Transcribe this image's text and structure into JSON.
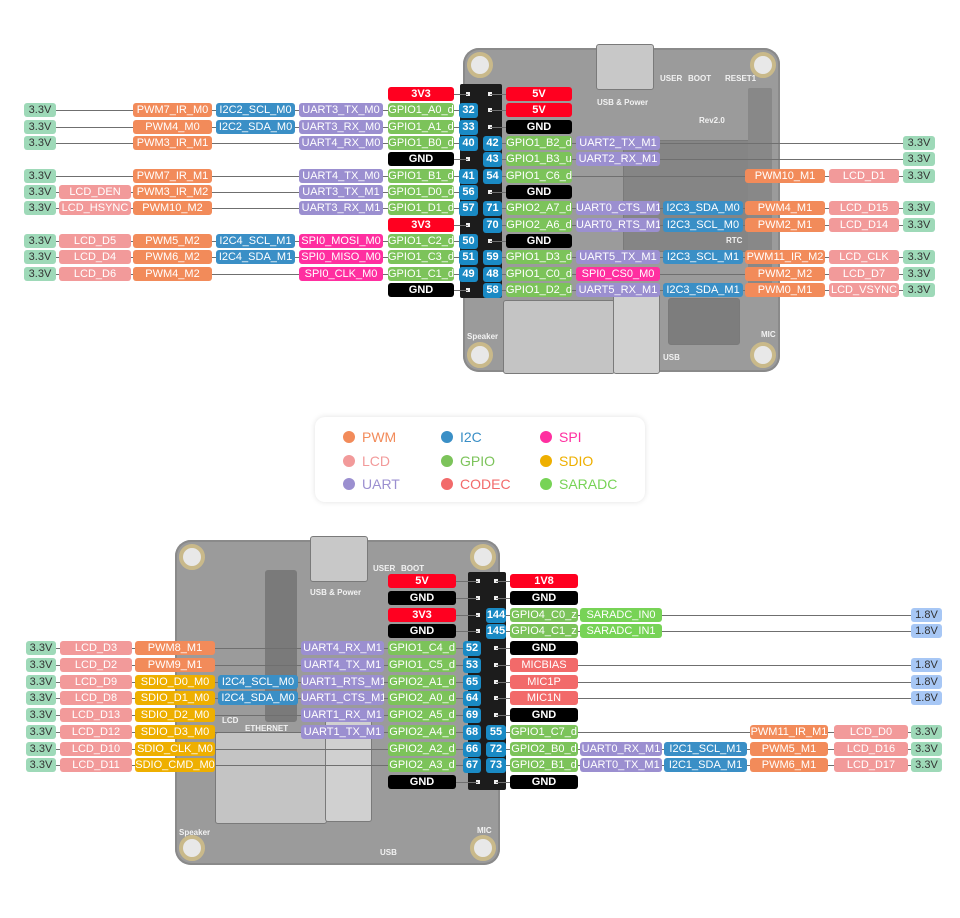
{
  "colors": {
    "pwm": "#f28b5a",
    "lcd": "#f29a9a",
    "uart": "#9b8fd0",
    "i2c": "#3a8fc6",
    "gpio": "#7cc35a",
    "codec": "#f26a6a",
    "spi": "#ff2fa0",
    "sdio": "#eeaf00",
    "saradc": "#77d356",
    "power": "#ff0020",
    "gnd": "#000000",
    "v33": "#9ed9b8",
    "v18": "#a7c7f5",
    "pin": "#1a8ac4"
  },
  "legend": [
    {
      "label": "PWM",
      "k": "pwm"
    },
    {
      "label": "I2C",
      "k": "i2c"
    },
    {
      "label": "SPI",
      "k": "spi"
    },
    {
      "label": "LCD",
      "k": "lcd"
    },
    {
      "label": "GPIO",
      "k": "gpio"
    },
    {
      "label": "SDIO",
      "k": "sdio"
    },
    {
      "label": "UART",
      "k": "uart"
    },
    {
      "label": "CODEC",
      "k": "codec"
    },
    {
      "label": "SARADC",
      "k": "saradc"
    }
  ],
  "top_board": {
    "labels": {
      "usb_power": "USB & Power",
      "user": "USER",
      "boot": "BOOT",
      "reset": "RESET1",
      "rev": "Rev2.0",
      "rtc": "RTC",
      "speaker": "Speaker",
      "usb": "USB",
      "mic": "MIC"
    }
  },
  "bottom_board": {
    "labels": {
      "usb_power": "USB & Power",
      "user": "USER",
      "boot": "BOOT",
      "lcd": "LCD",
      "ethernet": "ETHERNET",
      "speaker": "Speaker",
      "usb": "USB",
      "mic": "MIC"
    }
  },
  "top": {
    "rows": [
      {
        "left": [
          null,
          null,
          null,
          null,
          null,
          {
            "t": "3V3",
            "k": "power"
          }
        ],
        "lpin": null,
        "rpin": null,
        "right": [
          {
            "t": "5V",
            "k": "power"
          },
          null,
          null,
          null,
          null,
          null
        ]
      },
      {
        "left": [
          {
            "t": "3.3V",
            "k": "v33"
          },
          null,
          {
            "t": "PWM7_IR_M0",
            "k": "pwm"
          },
          {
            "t": "I2C2_SCL_M0",
            "k": "i2c"
          },
          {
            "t": "UART3_TX_M0",
            "k": "uart"
          },
          {
            "t": "GPIO1_A0_d",
            "k": "gpio"
          }
        ],
        "lpin": "32",
        "rpin": null,
        "right": [
          {
            "t": "5V",
            "k": "power"
          },
          null,
          null,
          null,
          null,
          null
        ]
      },
      {
        "left": [
          {
            "t": "3.3V",
            "k": "v33"
          },
          null,
          {
            "t": "PWM4_M0",
            "k": "pwm"
          },
          {
            "t": "I2C2_SDA_M0",
            "k": "i2c"
          },
          {
            "t": "UART3_RX_M0",
            "k": "uart"
          },
          {
            "t": "GPIO1_A1_d",
            "k": "gpio"
          }
        ],
        "lpin": "33",
        "rpin": null,
        "right": [
          {
            "t": "GND",
            "k": "gnd"
          },
          null,
          null,
          null,
          null,
          null
        ]
      },
      {
        "left": [
          {
            "t": "3.3V",
            "k": "v33"
          },
          null,
          {
            "t": "PWM3_IR_M1",
            "k": "pwm"
          },
          null,
          {
            "t": "UART4_RX_M0",
            "k": "uart"
          },
          {
            "t": "GPIO1_B0_d",
            "k": "gpio"
          }
        ],
        "lpin": "40",
        "rpin": "42",
        "right": [
          {
            "t": "GPIO1_B2_d",
            "k": "gpio"
          },
          {
            "t": "UART2_TX_M1",
            "k": "uart"
          },
          null,
          null,
          null,
          {
            "t": "3.3V",
            "k": "v33"
          }
        ]
      },
      {
        "left": [
          null,
          null,
          null,
          null,
          null,
          {
            "t": "GND",
            "k": "gnd"
          }
        ],
        "lpin": null,
        "rpin": "43",
        "right": [
          {
            "t": "GPIO1_B3_u",
            "k": "gpio"
          },
          {
            "t": "UART2_RX_M1",
            "k": "uart"
          },
          null,
          null,
          null,
          {
            "t": "3.3V",
            "k": "v33"
          }
        ]
      },
      {
        "left": [
          {
            "t": "3.3V",
            "k": "v33"
          },
          null,
          {
            "t": "PWM7_IR_M1",
            "k": "pwm"
          },
          null,
          {
            "t": "UART4_TX_M0",
            "k": "uart"
          },
          {
            "t": "GPIO1_B1_d",
            "k": "gpio"
          }
        ],
        "lpin": "41",
        "rpin": "54",
        "right": [
          {
            "t": "GPIO1_C6_d",
            "k": "gpio"
          },
          null,
          null,
          {
            "t": "PWM10_M1",
            "k": "pwm"
          },
          {
            "t": "LCD_D1",
            "k": "lcd"
          },
          {
            "t": "3.3V",
            "k": "v33"
          }
        ]
      },
      {
        "left": [
          {
            "t": "3.3V",
            "k": "v33"
          },
          {
            "t": "LCD_DEN",
            "k": "lcd"
          },
          {
            "t": "PWM3_IR_M2",
            "k": "pwm"
          },
          null,
          {
            "t": "UART3_TX_M1",
            "k": "uart"
          },
          {
            "t": "GPIO1_D0_d",
            "k": "gpio"
          }
        ],
        "lpin": "56",
        "rpin": null,
        "right": [
          {
            "t": "GND",
            "k": "gnd"
          },
          null,
          null,
          null,
          null,
          null
        ]
      },
      {
        "left": [
          {
            "t": "3.3V",
            "k": "v33"
          },
          {
            "t": "LCD_HSYNC",
            "k": "lcd"
          },
          {
            "t": "PWM10_M2",
            "k": "pwm"
          },
          null,
          {
            "t": "UART3_RX_M1",
            "k": "uart"
          },
          {
            "t": "GPIO1_D1_d",
            "k": "gpio"
          }
        ],
        "lpin": "57",
        "rpin": "71",
        "right": [
          {
            "t": "GPIO2_A7_d",
            "k": "gpio"
          },
          {
            "t": "UART0_CTS_M1",
            "k": "uart"
          },
          {
            "t": "I2C3_SDA_M0",
            "k": "i2c"
          },
          {
            "t": "PWM4_M1",
            "k": "pwm"
          },
          {
            "t": "LCD_D15",
            "k": "lcd"
          },
          {
            "t": "3.3V",
            "k": "v33"
          }
        ]
      },
      {
        "left": [
          null,
          null,
          null,
          null,
          null,
          {
            "t": "3V3",
            "k": "power"
          }
        ],
        "lpin": null,
        "rpin": "70",
        "right": [
          {
            "t": "GPIO2_A6_d",
            "k": "gpio"
          },
          {
            "t": "UART0_RTS_M1",
            "k": "uart"
          },
          {
            "t": "I2C3_SCL_M0",
            "k": "i2c"
          },
          {
            "t": "PWM2_M1",
            "k": "pwm"
          },
          {
            "t": "LCD_D14",
            "k": "lcd"
          },
          {
            "t": "3.3V",
            "k": "v33"
          }
        ]
      },
      {
        "left": [
          {
            "t": "3.3V",
            "k": "v33"
          },
          {
            "t": "LCD_D5",
            "k": "lcd"
          },
          {
            "t": "PWM5_M2",
            "k": "pwm"
          },
          {
            "t": "I2C4_SCL_M1",
            "k": "i2c"
          },
          {
            "t": "SPI0_MOSI_M0",
            "k": "spi"
          },
          {
            "t": "GPIO1_C2_d",
            "k": "gpio"
          }
        ],
        "lpin": "50",
        "rpin": null,
        "right": [
          {
            "t": "GND",
            "k": "gnd"
          },
          null,
          null,
          null,
          null,
          null
        ]
      },
      {
        "left": [
          {
            "t": "3.3V",
            "k": "v33"
          },
          {
            "t": "LCD_D4",
            "k": "lcd"
          },
          {
            "t": "PWM6_M2",
            "k": "pwm"
          },
          {
            "t": "I2C4_SDA_M1",
            "k": "i2c"
          },
          {
            "t": "SPI0_MISO_M0",
            "k": "spi"
          },
          {
            "t": "GPIO1_C3_d",
            "k": "gpio"
          }
        ],
        "lpin": "51",
        "rpin": "59",
        "right": [
          {
            "t": "GPIO1_D3_d",
            "k": "gpio"
          },
          {
            "t": "UART5_TX_M1",
            "k": "uart"
          },
          {
            "t": "I2C3_SCL_M1",
            "k": "i2c"
          },
          {
            "t": "PWM11_IR_M2",
            "k": "pwm"
          },
          {
            "t": "LCD_CLK",
            "k": "lcd"
          },
          {
            "t": "3.3V",
            "k": "v33"
          }
        ]
      },
      {
        "left": [
          {
            "t": "3.3V",
            "k": "v33"
          },
          {
            "t": "LCD_D6",
            "k": "lcd"
          },
          {
            "t": "PWM4_M2",
            "k": "pwm"
          },
          null,
          {
            "t": "SPI0_CLK_M0",
            "k": "spi"
          },
          {
            "t": "GPIO1_C1_d",
            "k": "gpio"
          }
        ],
        "lpin": "49",
        "rpin": "48",
        "right": [
          {
            "t": "GPIO1_C0_d",
            "k": "gpio"
          },
          {
            "t": "SPI0_CS0_M0",
            "k": "spi"
          },
          null,
          {
            "t": "PWM2_M2",
            "k": "pwm"
          },
          {
            "t": "LCD_D7",
            "k": "lcd"
          },
          {
            "t": "3.3V",
            "k": "v33"
          }
        ]
      },
      {
        "left": [
          null,
          null,
          null,
          null,
          null,
          {
            "t": "GND",
            "k": "gnd"
          }
        ],
        "lpin": null,
        "rpin": "58",
        "right": [
          {
            "t": "GPIO1_D2_d",
            "k": "gpio"
          },
          {
            "t": "UART5_RX_M1",
            "k": "uart"
          },
          {
            "t": "I2C3_SDA_M1",
            "k": "i2c"
          },
          {
            "t": "PWM0_M1",
            "k": "pwm"
          },
          {
            "t": "LCD_VSYNC",
            "k": "lcd"
          },
          {
            "t": "3.3V",
            "k": "v33"
          }
        ]
      }
    ]
  },
  "bottom": {
    "rows": [
      {
        "left": [
          null,
          null,
          null,
          null,
          null,
          {
            "t": "5V",
            "k": "power"
          }
        ],
        "lpin": null,
        "rpin": null,
        "right": [
          {
            "t": "1V8",
            "k": "power"
          },
          null,
          null,
          null,
          null,
          null
        ]
      },
      {
        "left": [
          null,
          null,
          null,
          null,
          null,
          {
            "t": "GND",
            "k": "gnd"
          }
        ],
        "lpin": null,
        "rpin": null,
        "right": [
          {
            "t": "GND",
            "k": "gnd"
          },
          null,
          null,
          null,
          null,
          null
        ]
      },
      {
        "left": [
          null,
          null,
          null,
          null,
          null,
          {
            "t": "3V3",
            "k": "power"
          }
        ],
        "lpin": null,
        "rpin": "144",
        "right": [
          {
            "t": "GPIO4_C0_z",
            "k": "gpio"
          },
          {
            "t": "SARADC_IN0",
            "k": "saradc"
          },
          null,
          null,
          null,
          {
            "t": "1.8V",
            "k": "v18"
          }
        ]
      },
      {
        "left": [
          null,
          null,
          null,
          null,
          null,
          {
            "t": "GND",
            "k": "gnd"
          }
        ],
        "lpin": null,
        "rpin": "145",
        "right": [
          {
            "t": "GPIO4_C1_z",
            "k": "gpio"
          },
          {
            "t": "SARADC_IN1",
            "k": "saradc"
          },
          null,
          null,
          null,
          {
            "t": "1.8V",
            "k": "v18"
          }
        ]
      },
      {
        "left": [
          {
            "t": "3.3V",
            "k": "v33"
          },
          {
            "t": "LCD_D3",
            "k": "lcd"
          },
          {
            "t": "PWM8_M1",
            "k": "pwm"
          },
          null,
          {
            "t": "UART4_RX_M1",
            "k": "uart"
          },
          {
            "t": "GPIO1_C4_d",
            "k": "gpio"
          }
        ],
        "lpin": "52",
        "rpin": null,
        "right": [
          {
            "t": "GND",
            "k": "gnd"
          },
          null,
          null,
          null,
          null,
          null
        ]
      },
      {
        "left": [
          {
            "t": "3.3V",
            "k": "v33"
          },
          {
            "t": "LCD_D2",
            "k": "lcd"
          },
          {
            "t": "PWM9_M1",
            "k": "pwm"
          },
          null,
          {
            "t": "UART4_TX_M1",
            "k": "uart"
          },
          {
            "t": "GPIO1_C5_d",
            "k": "gpio"
          }
        ],
        "lpin": "53",
        "rpin": null,
        "right": [
          {
            "t": "MICBIAS",
            "k": "codec"
          },
          null,
          null,
          null,
          null,
          {
            "t": "1.8V",
            "k": "v18"
          }
        ]
      },
      {
        "left": [
          {
            "t": "3.3V",
            "k": "v33"
          },
          {
            "t": "LCD_D9",
            "k": "lcd"
          },
          {
            "t": "SDIO_D0_M0",
            "k": "sdio"
          },
          {
            "t": "I2C4_SCL_M0",
            "k": "i2c"
          },
          {
            "t": "UART1_RTS_M1",
            "k": "uart"
          },
          {
            "t": "GPIO2_A1_d",
            "k": "gpio"
          }
        ],
        "lpin": "65",
        "rpin": null,
        "right": [
          {
            "t": "MIC1P",
            "k": "codec"
          },
          null,
          null,
          null,
          null,
          {
            "t": "1.8V",
            "k": "v18"
          }
        ]
      },
      {
        "left": [
          {
            "t": "3.3V",
            "k": "v33"
          },
          {
            "t": "LCD_D8",
            "k": "lcd"
          },
          {
            "t": "SDIO_D1_M0",
            "k": "sdio"
          },
          {
            "t": "I2C4_SDA_M0",
            "k": "i2c"
          },
          {
            "t": "UART1_CTS_M1",
            "k": "uart"
          },
          {
            "t": "GPIO2_A0_d",
            "k": "gpio"
          }
        ],
        "lpin": "64",
        "rpin": null,
        "right": [
          {
            "t": "MIC1N",
            "k": "codec"
          },
          null,
          null,
          null,
          null,
          {
            "t": "1.8V",
            "k": "v18"
          }
        ]
      },
      {
        "left": [
          {
            "t": "3.3V",
            "k": "v33"
          },
          {
            "t": "LCD_D13",
            "k": "lcd"
          },
          {
            "t": "SDIO_D2_M0",
            "k": "sdio"
          },
          null,
          {
            "t": "UART1_RX_M1",
            "k": "uart"
          },
          {
            "t": "GPIO2_A5_d",
            "k": "gpio"
          }
        ],
        "lpin": "69",
        "rpin": null,
        "right": [
          {
            "t": "GND",
            "k": "gnd"
          },
          null,
          null,
          null,
          null,
          null
        ]
      },
      {
        "left": [
          {
            "t": "3.3V",
            "k": "v33"
          },
          {
            "t": "LCD_D12",
            "k": "lcd"
          },
          {
            "t": "SDIO_D3_M0",
            "k": "sdio"
          },
          null,
          {
            "t": "UART1_TX_M1",
            "k": "uart"
          },
          {
            "t": "GPIO2_A4_d",
            "k": "gpio"
          }
        ],
        "lpin": "68",
        "rpin": "55",
        "right": [
          {
            "t": "GPIO1_C7_d",
            "k": "gpio"
          },
          null,
          null,
          {
            "t": "PWM11_IR_M1",
            "k": "pwm"
          },
          {
            "t": "LCD_D0",
            "k": "lcd"
          },
          {
            "t": "3.3V",
            "k": "v33"
          }
        ]
      },
      {
        "left": [
          {
            "t": "3.3V",
            "k": "v33"
          },
          {
            "t": "LCD_D10",
            "k": "lcd"
          },
          {
            "t": "SDIO_CLK_M0",
            "k": "sdio"
          },
          null,
          null,
          {
            "t": "GPIO2_A2_d",
            "k": "gpio"
          }
        ],
        "lpin": "66",
        "rpin": "72",
        "right": [
          {
            "t": "GPIO2_B0_d",
            "k": "gpio"
          },
          {
            "t": "UART0_RX_M1",
            "k": "uart"
          },
          {
            "t": "I2C1_SCL_M1",
            "k": "i2c"
          },
          {
            "t": "PWM5_M1",
            "k": "pwm"
          },
          {
            "t": "LCD_D16",
            "k": "lcd"
          },
          {
            "t": "3.3V",
            "k": "v33"
          }
        ]
      },
      {
        "left": [
          {
            "t": "3.3V",
            "k": "v33"
          },
          {
            "t": "LCD_D11",
            "k": "lcd"
          },
          {
            "t": "SDIO_CMD_M0",
            "k": "sdio"
          },
          null,
          null,
          {
            "t": "GPIO2_A3_d",
            "k": "gpio"
          }
        ],
        "lpin": "67",
        "rpin": "73",
        "right": [
          {
            "t": "GPIO2_B1_d",
            "k": "gpio"
          },
          {
            "t": "UART0_TX_M1",
            "k": "uart"
          },
          {
            "t": "I2C1_SDA_M1",
            "k": "i2c"
          },
          {
            "t": "PWM6_M1",
            "k": "pwm"
          },
          {
            "t": "LCD_D17",
            "k": "lcd"
          },
          {
            "t": "3.3V",
            "k": "v33"
          }
        ]
      },
      {
        "left": [
          null,
          null,
          null,
          null,
          null,
          {
            "t": "GND",
            "k": "gnd"
          }
        ],
        "lpin": null,
        "rpin": null,
        "right": [
          {
            "t": "GND",
            "k": "gnd"
          },
          null,
          null,
          null,
          null,
          null
        ]
      }
    ]
  }
}
